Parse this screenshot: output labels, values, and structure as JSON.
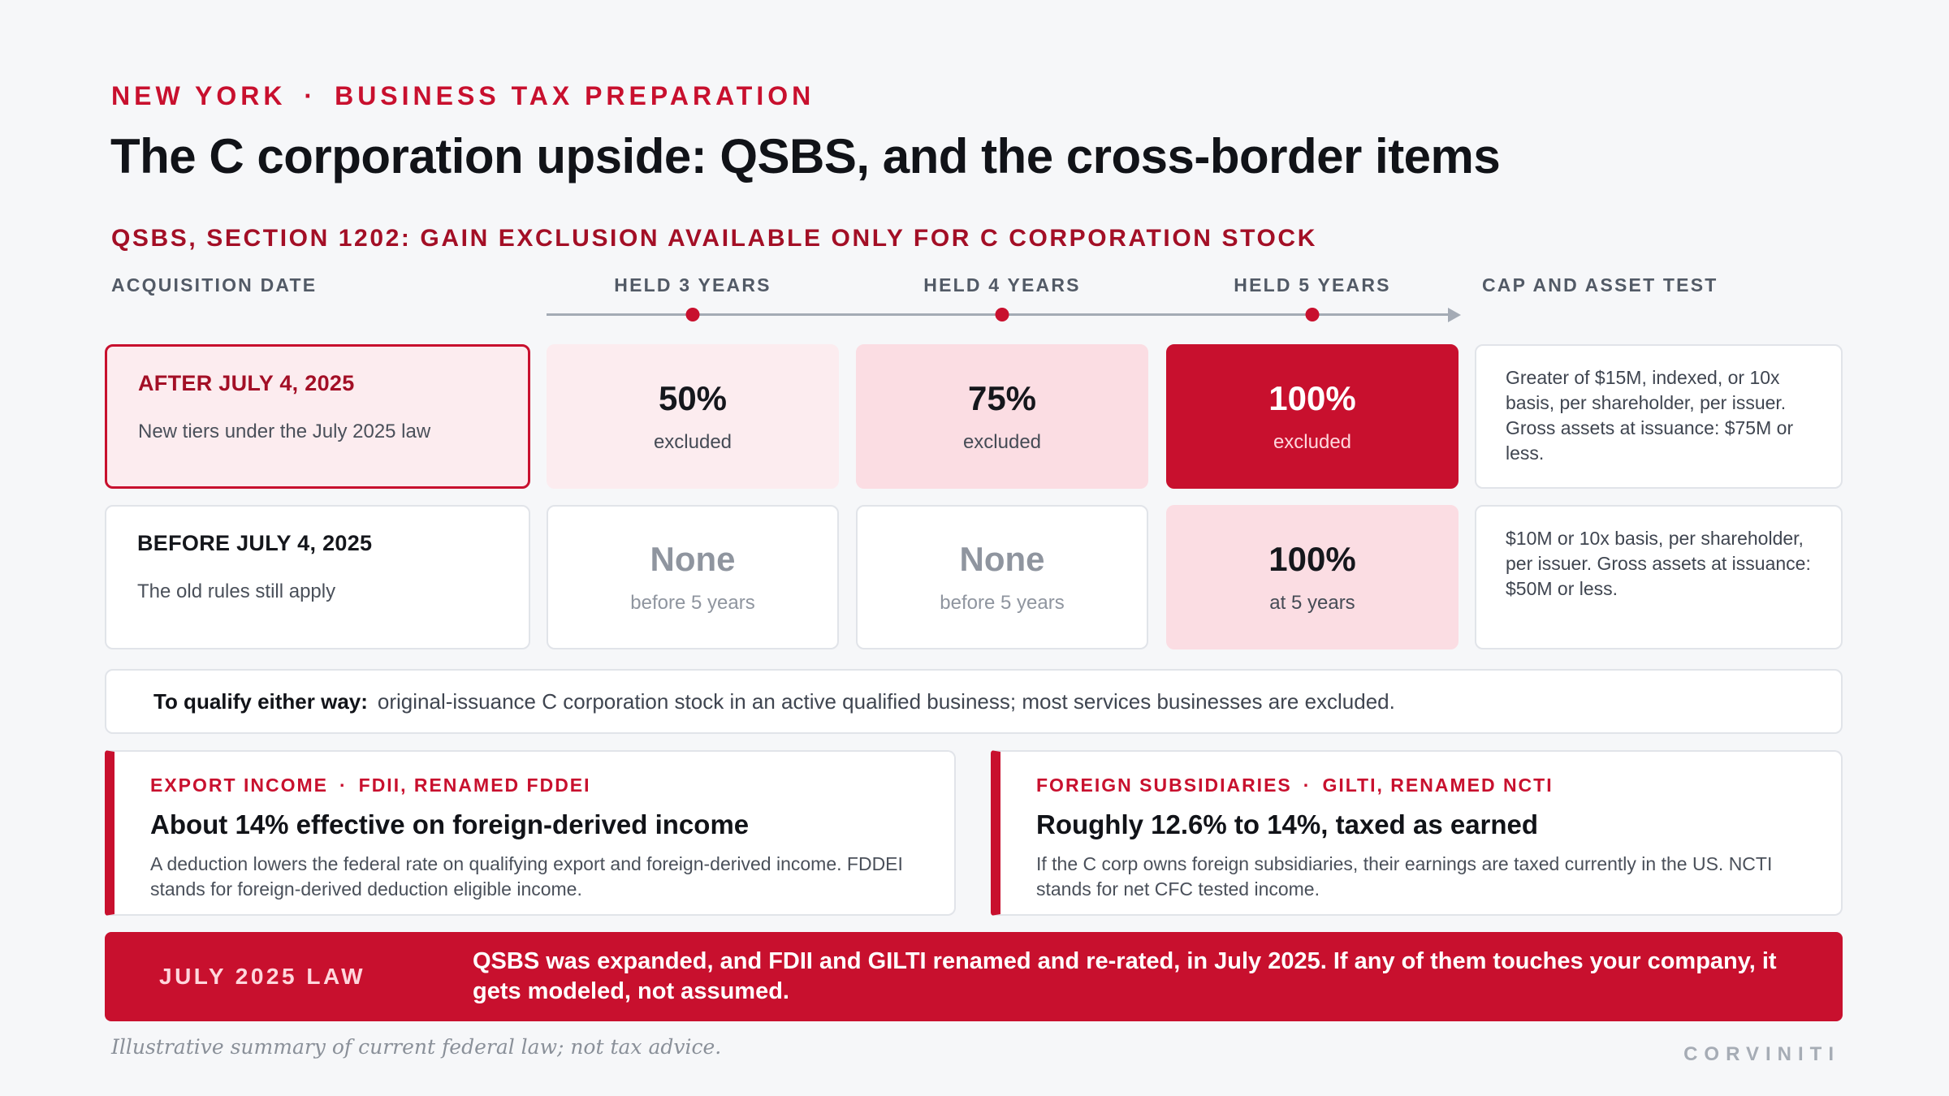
{
  "header": {
    "eyebrow_left": "NEW YORK",
    "eyebrow_sep": "·",
    "eyebrow_right": "BUSINESS TAX PREPARATION",
    "title": "The C corporation upside: QSBS, and the cross-border items"
  },
  "qsbs": {
    "section_title": "QSBS, SECTION 1202: GAIN EXCLUSION AVAILABLE ONLY FOR C CORPORATION STOCK",
    "columns": {
      "acquisition": "ACQUISITION DATE",
      "held3": "HELD 3 YEARS",
      "held4": "HELD 4 YEARS",
      "held5": "HELD 5 YEARS",
      "cap": "CAP AND ASSET TEST"
    },
    "rows": [
      {
        "label": "AFTER JULY 4, 2025",
        "sub": "New tiers under the July 2025 law",
        "cells": [
          {
            "value": "50%",
            "note": "excluded"
          },
          {
            "value": "75%",
            "note": "excluded"
          },
          {
            "value": "100%",
            "note": "excluded"
          }
        ],
        "cap": "Greater of $15M, indexed, or 10x basis, per shareholder, per issuer. Gross assets at issuance: $75M or less."
      },
      {
        "label": "BEFORE JULY 4, 2025",
        "sub": "The old rules still apply",
        "cells": [
          {
            "value": "None",
            "note": "before 5 years"
          },
          {
            "value": "None",
            "note": "before 5 years"
          },
          {
            "value": "100%",
            "note": "at 5 years"
          }
        ],
        "cap": "$10M or 10x basis, per shareholder, per issuer. Gross assets at issuance: $50M or less."
      }
    ],
    "qualify_label": "To qualify either way:",
    "qualify_text": "original-issuance C corporation stock in an active qualified business; most services businesses are excluded."
  },
  "panels": [
    {
      "tag_left": "EXPORT INCOME",
      "tag_sep": "·",
      "tag_right": "FDII, RENAMED FDDEI",
      "heading": "About 14% effective on foreign-derived income",
      "body": "A deduction lowers the federal rate on qualifying export and foreign-derived income. FDDEI stands for foreign-derived deduction eligible income."
    },
    {
      "tag_left": "FOREIGN SUBSIDIARIES",
      "tag_sep": "·",
      "tag_right": "GILTI, RENAMED NCTI",
      "heading": "Roughly 12.6% to 14%, taxed as earned",
      "body": "If the C corp owns foreign subsidiaries, their earnings are taxed currently in the US. NCTI stands for net CFC tested income."
    }
  ],
  "banner": {
    "label": "JULY 2025 LAW",
    "text": "QSBS was expanded, and FDII and GILTI renamed and re-rated, in July 2025. If any of them touches your company, it gets modeled, not assumed."
  },
  "footer": {
    "footnote": "Illustrative summary of current federal law; not tax advice.",
    "brand": "CORVINITI"
  },
  "colors": {
    "accent": "#c8102e",
    "accent_dark": "#a30f26",
    "tint_light": "#fcecef",
    "tint_mid": "#fbdde3"
  }
}
